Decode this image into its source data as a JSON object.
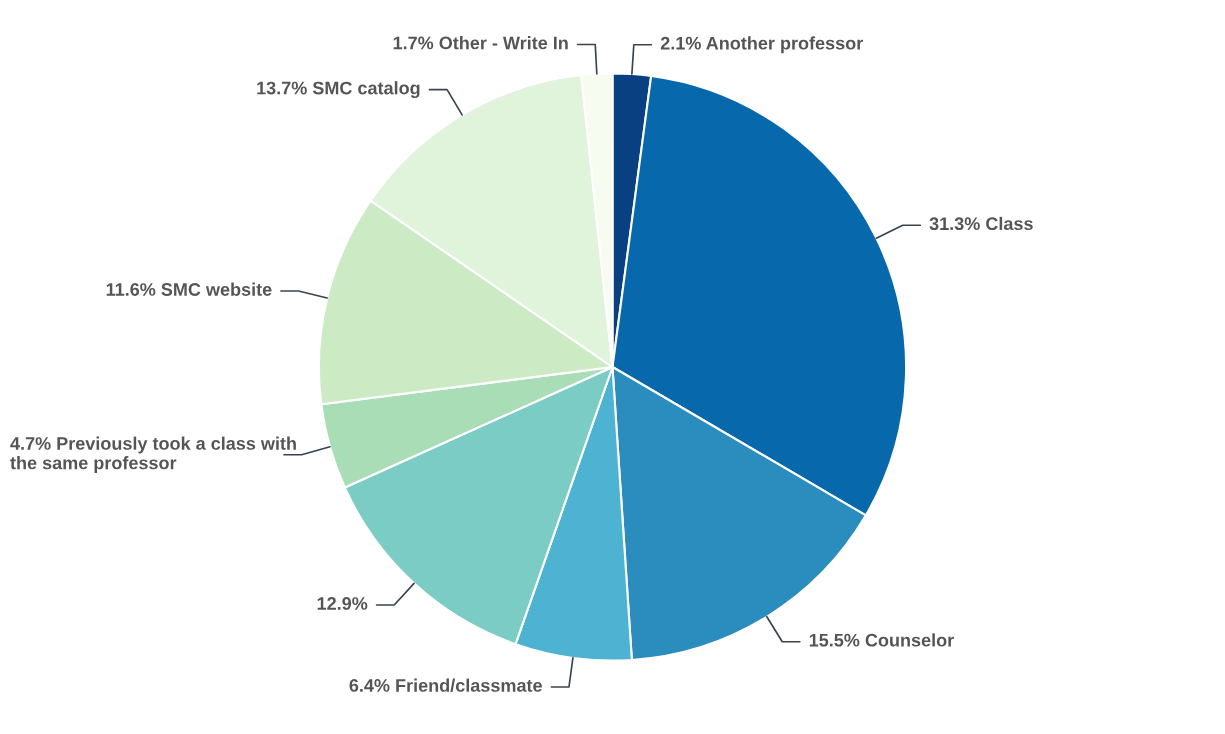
{
  "chart_data": {
    "type": "pie",
    "categories": [
      "Another professor",
      "Class",
      "Counselor",
      "Friend/classmate",
      null,
      "Previously took a class with\nthe same professor",
      "SMC website",
      "SMC catalog",
      "Other - Write In"
    ],
    "values": [
      2.1,
      31.3,
      15.5,
      6.4,
      12.9,
      4.7,
      11.6,
      13.7,
      1.7
    ],
    "colors": [
      "#084081",
      "#0868ac",
      "#2b8cbe",
      "#4eb3d3",
      "#7bccc4",
      "#a8ddb5",
      "#ccebc5",
      "#e0f3db",
      "#f7fcf0"
    ],
    "value_labels": [
      "2.1%",
      "31.3%",
      "15.5%",
      "6.4%",
      "12.9%",
      "4.7%",
      "11.6%",
      "13.7%",
      "1.7%"
    ],
    "legend": false
  }
}
